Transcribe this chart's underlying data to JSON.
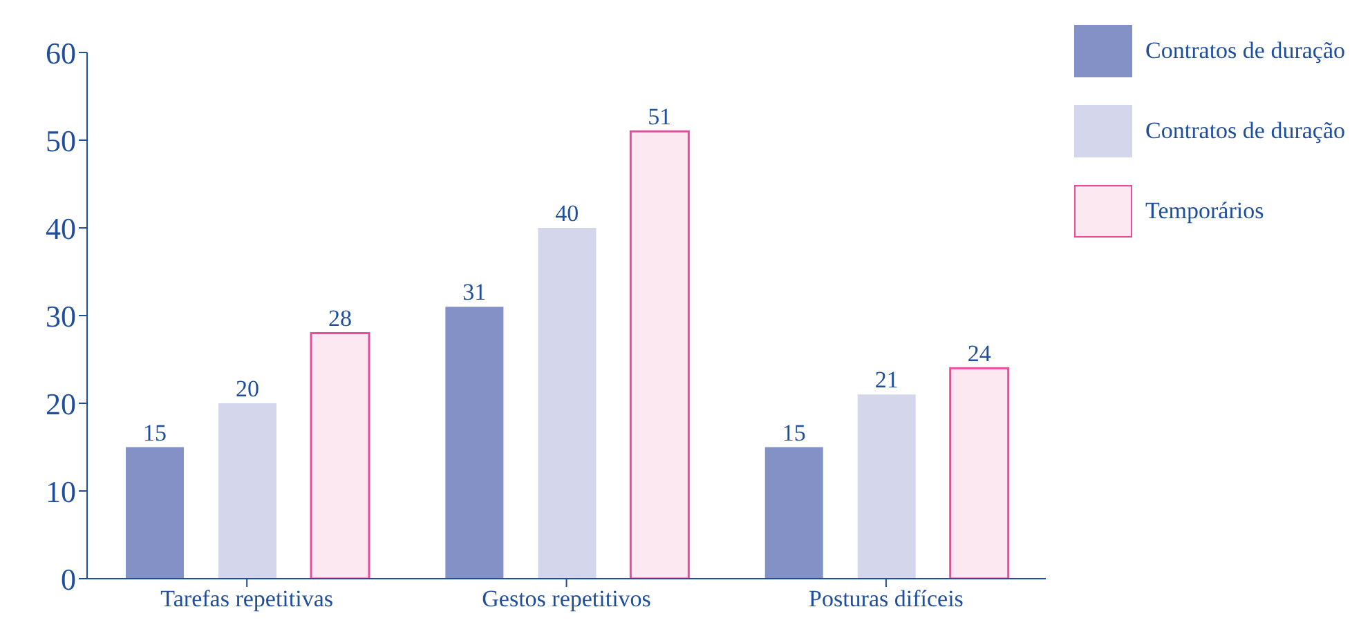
{
  "chart_data": {
    "type": "bar",
    "categories": [
      "Tarefas repetitivas",
      "Gestos repetitivos",
      "Posturas difíceis"
    ],
    "series": [
      {
        "name": "Contratos de duração",
        "color": "#8491c6",
        "values": [
          15,
          31,
          15
        ]
      },
      {
        "name": "Contratos de duração",
        "color": "#d4d6ec",
        "values": [
          20,
          40,
          21
        ]
      },
      {
        "name": "Temporários",
        "color": "#fce8f1",
        "values": [
          28,
          51,
          24
        ]
      }
    ],
    "ylim": [
      0,
      60
    ],
    "yticks": [
      0,
      10,
      20,
      30,
      40,
      50,
      60
    ],
    "grid": false,
    "legend": "top right",
    "data_labels": true
  }
}
